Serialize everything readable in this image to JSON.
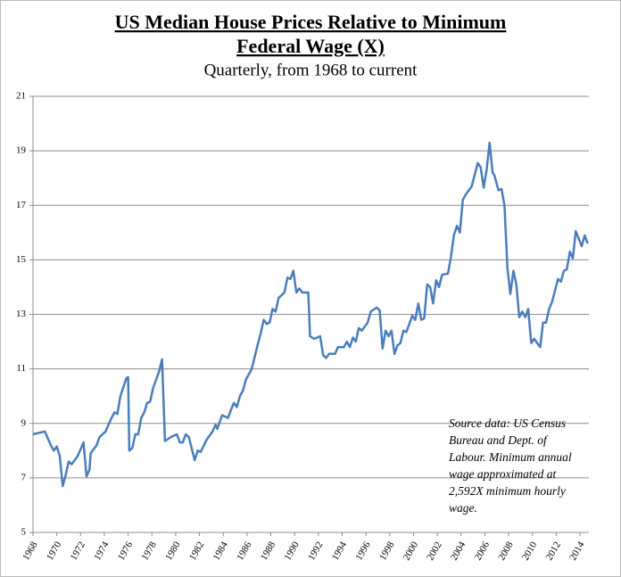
{
  "chart_data": {
    "type": "line",
    "title_lines": [
      "US Median House Prices Relative to Minimum",
      "Federal  Wage (X)"
    ],
    "subtitle": "Quarterly, from 1968 to current",
    "annotation_lines": [
      "Source data: US Census",
      "Bureau and Dept. of",
      "Labour. Minimum annual",
      "wage approximated at",
      "2,592X minimum hourly",
      "wage."
    ],
    "xlim": [
      1968,
      2014.75
    ],
    "xticks": [
      1968,
      1970,
      1972,
      1974,
      1976,
      1978,
      1980,
      1982,
      1984,
      1986,
      1988,
      1990,
      1992,
      1994,
      1996,
      1998,
      2000,
      2002,
      2004,
      2006,
      2008,
      2010,
      2012,
      2014
    ],
    "ylim": [
      5,
      21
    ],
    "yticks": [
      5,
      7,
      9,
      11,
      13,
      15,
      17,
      19,
      21
    ],
    "grid": true,
    "series": [
      {
        "color": "#4a7ebb",
        "x": [
          1968,
          1968.5,
          1969,
          1969.5,
          1969.75,
          1970,
          1970.25,
          1970.5,
          1970.75,
          1971,
          1971.25,
          1971.75,
          1972.25,
          1972.5,
          1972.75,
          1972.85,
          1973.35,
          1973.6,
          1974.1,
          1974.6,
          1974.85,
          1975.1,
          1975.35,
          1975.85,
          1976.0,
          1976.1,
          1976.35,
          1976.6,
          1976.85,
          1977.1,
          1977.35,
          1977.6,
          1977.85,
          1978.1,
          1978.6,
          1978.85,
          1979.1,
          1979.6,
          1980.1,
          1980.35,
          1980.6,
          1980.85,
          1981.1,
          1981.6,
          1981.85,
          1982.1,
          1982.6,
          1983.1,
          1983.35,
          1983.5,
          1983.9,
          1984.15,
          1984.4,
          1984.65,
          1984.9,
          1985.15,
          1985.4,
          1985.65,
          1985.9,
          1986.4,
          1986.9,
          1987.15,
          1987.4,
          1987.65,
          1987.9,
          1988.15,
          1988.4,
          1988.65,
          1989.15,
          1989.4,
          1989.65,
          1989.9,
          1990.15,
          1990.4,
          1990.65,
          1991.15,
          1991.3,
          1991.65,
          1992.15,
          1992.4,
          1992.65,
          1992.9,
          1993.4,
          1993.65,
          1994.15,
          1994.4,
          1994.65,
          1994.9,
          1995.15,
          1995.4,
          1995.65,
          1996.15,
          1996.4,
          1996.9,
          1997.15,
          1997.4,
          1997.65,
          1997.9,
          1998.15,
          1998.4,
          1998.65,
          1998.9,
          1999.15,
          1999.4,
          1999.9,
          2000.15,
          2000.4,
          2000.65,
          2000.9,
          2001.15,
          2001.4,
          2001.65,
          2001.9,
          2002.15,
          2002.4,
          2002.9,
          2003.15,
          2003.4,
          2003.65,
          2003.9,
          2004.15,
          2004.4,
          2004.9,
          2005.4,
          2005.65,
          2005.9,
          2006.15,
          2006.4,
          2006.65,
          2006.8,
          2007.15,
          2007.4,
          2007.65,
          2007.9,
          2008.15,
          2008.4,
          2008.65,
          2008.9,
          2009.15,
          2009.4,
          2009.65,
          2009.9,
          2010.15,
          2010.4,
          2010.65,
          2010.9,
          2011.15,
          2011.4,
          2011.65,
          2012.15,
          2012.4,
          2012.65,
          2012.9,
          2013.15,
          2013.4,
          2013.65,
          2014.15,
          2014.4,
          2014.65
        ],
        "values": [
          8.6,
          8.65,
          8.7,
          8.2,
          8.0,
          8.15,
          7.8,
          6.7,
          7.1,
          7.6,
          7.5,
          7.8,
          8.3,
          7.05,
          7.3,
          7.9,
          8.2,
          8.5,
          8.7,
          9.2,
          9.4,
          9.35,
          10.0,
          10.65,
          10.7,
          8.0,
          8.1,
          8.6,
          8.6,
          9.2,
          9.4,
          9.75,
          9.8,
          10.3,
          10.9,
          11.35,
          8.35,
          8.5,
          8.6,
          8.3,
          8.3,
          8.6,
          8.5,
          7.65,
          8.0,
          7.95,
          8.4,
          8.7,
          8.95,
          8.8,
          9.3,
          9.25,
          9.2,
          9.5,
          9.75,
          9.6,
          10.0,
          10.2,
          10.6,
          11.0,
          11.9,
          12.3,
          12.8,
          12.65,
          12.7,
          13.2,
          13.1,
          13.6,
          13.8,
          14.35,
          14.3,
          14.6,
          13.8,
          13.95,
          13.8,
          13.8,
          12.2,
          12.1,
          12.2,
          11.5,
          11.4,
          11.55,
          11.55,
          11.8,
          11.8,
          12.0,
          11.8,
          12.15,
          12.0,
          12.5,
          12.4,
          12.7,
          13.1,
          13.25,
          13.15,
          11.75,
          12.4,
          12.2,
          12.4,
          11.55,
          11.85,
          11.95,
          12.4,
          12.35,
          12.95,
          12.8,
          13.4,
          12.8,
          12.85,
          14.1,
          14.0,
          13.4,
          14.25,
          14.0,
          14.45,
          14.5,
          15.1,
          15.9,
          16.25,
          16.0,
          17.2,
          17.4,
          17.7,
          18.55,
          18.4,
          17.65,
          18.3,
          19.3,
          18.2,
          18.1,
          17.55,
          17.6,
          17.0,
          14.7,
          13.75,
          14.6,
          14.1,
          12.9,
          13.1,
          12.9,
          13.2,
          11.95,
          12.1,
          11.95,
          11.8,
          12.7,
          12.7,
          13.2,
          13.45,
          14.3,
          14.2,
          14.6,
          14.65,
          15.3,
          15.05,
          16.05,
          15.5,
          15.9,
          15.6
        ]
      }
    ]
  }
}
